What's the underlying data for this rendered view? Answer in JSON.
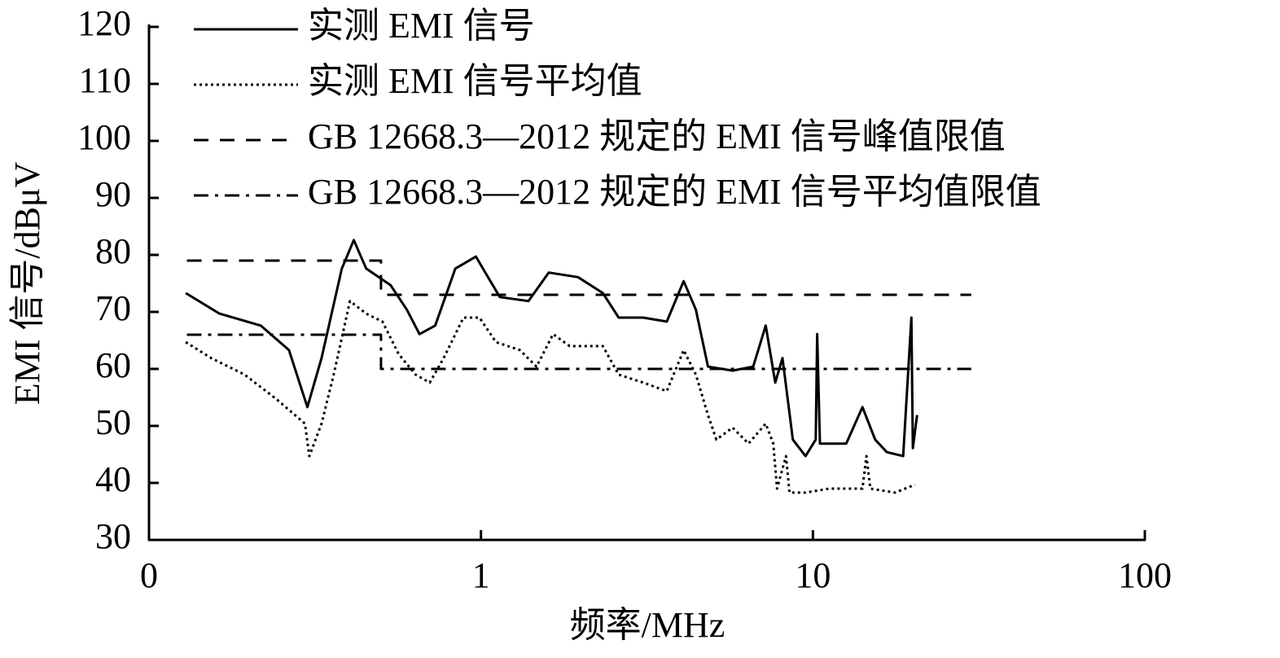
{
  "chart_data": {
    "type": "line",
    "xlabel": "频率/MHz",
    "ylabel": "EMI 信号/dBμV",
    "xscale": "log",
    "xlim": [
      0.1,
      100
    ],
    "xticks": [
      {
        "value": 0.1,
        "label": "0"
      },
      1,
      10,
      100
    ],
    "ylim": [
      30,
      120
    ],
    "yticks": [
      30,
      40,
      50,
      60,
      70,
      80,
      90,
      100,
      110,
      120
    ],
    "legend": "upper-left",
    "series": [
      {
        "name": "实测 EMI 信号",
        "color": "#000000",
        "style": "solid",
        "x": [
          0.129,
          0.163,
          0.217,
          0.264,
          0.3,
          0.331,
          0.381,
          0.414,
          0.451,
          0.534,
          0.598,
          0.653,
          0.728,
          0.837,
          0.966,
          1.05,
          1.14,
          1.39,
          1.6,
          1.96,
          2.33,
          2.6,
          3.08,
          3.63,
          4.08,
          4.44,
          4.83,
          5.73,
          6.61,
          7.21,
          7.7,
          8.1,
          8.7,
          9.5,
          10.2,
          10.3,
          10.5,
          12.6,
          14.1,
          15.4,
          16.7,
          18.7,
          19.8,
          20.0,
          20.6
        ],
        "values": [
          73.3,
          69.7,
          67.6,
          63.3,
          53.3,
          61.9,
          77.6,
          82.6,
          77.6,
          74.7,
          70.4,
          66.1,
          67.6,
          77.6,
          79.7,
          76.1,
          72.6,
          71.9,
          76.9,
          76.1,
          73.3,
          69.0,
          69.0,
          68.3,
          75.4,
          70.4,
          60.4,
          59.7,
          60.4,
          67.6,
          57.6,
          61.9,
          47.6,
          44.7,
          47.6,
          66.1,
          46.9,
          46.9,
          53.3,
          47.6,
          45.4,
          44.7,
          69.0,
          46.1,
          51.9
        ]
      },
      {
        "name": "实测 EMI 信号平均值",
        "color": "#000000",
        "style": "dotted",
        "x": [
          0.129,
          0.154,
          0.194,
          0.242,
          0.295,
          0.304,
          0.331,
          0.36,
          0.403,
          0.451,
          0.505,
          0.565,
          0.635,
          0.701,
          0.772,
          0.886,
          0.99,
          1.11,
          1.31,
          1.47,
          1.65,
          1.85,
          2.33,
          2.6,
          3.08,
          3.63,
          4.08,
          4.44,
          4.83,
          5.12,
          5.73,
          6.4,
          7.21,
          7.6,
          7.8,
          8.3,
          8.5,
          9.5,
          11.2,
          14.1,
          14.5,
          14.9,
          17.7,
          20.3
        ],
        "values": [
          64.7,
          61.9,
          59.0,
          54.7,
          50.4,
          44.7,
          50.4,
          59.0,
          71.9,
          69.7,
          68.3,
          62.6,
          59.0,
          57.6,
          61.9,
          69.0,
          69.0,
          64.7,
          63.3,
          60.4,
          66.1,
          64.0,
          64.0,
          59.0,
          57.6,
          56.1,
          63.3,
          59.0,
          51.9,
          47.6,
          49.7,
          46.9,
          50.4,
          46.9,
          39.0,
          44.7,
          38.3,
          38.3,
          39.0,
          39.0,
          44.7,
          39.0,
          38.3,
          39.7
        ]
      },
      {
        "name": "GB 12668.3—2012 规定的 EMI 信号峰值限值",
        "color": "#000000",
        "style": "dashed",
        "x": [
          0.13,
          0.5,
          0.5,
          30
        ],
        "values": [
          79,
          79,
          73,
          73
        ]
      },
      {
        "name": "GB 12668.3—2012 规定的 EMI 信号平均值限值",
        "color": "#000000",
        "style": "dashdot",
        "x": [
          0.13,
          0.5,
          0.5,
          30
        ],
        "values": [
          66,
          66,
          60,
          60
        ]
      }
    ]
  }
}
